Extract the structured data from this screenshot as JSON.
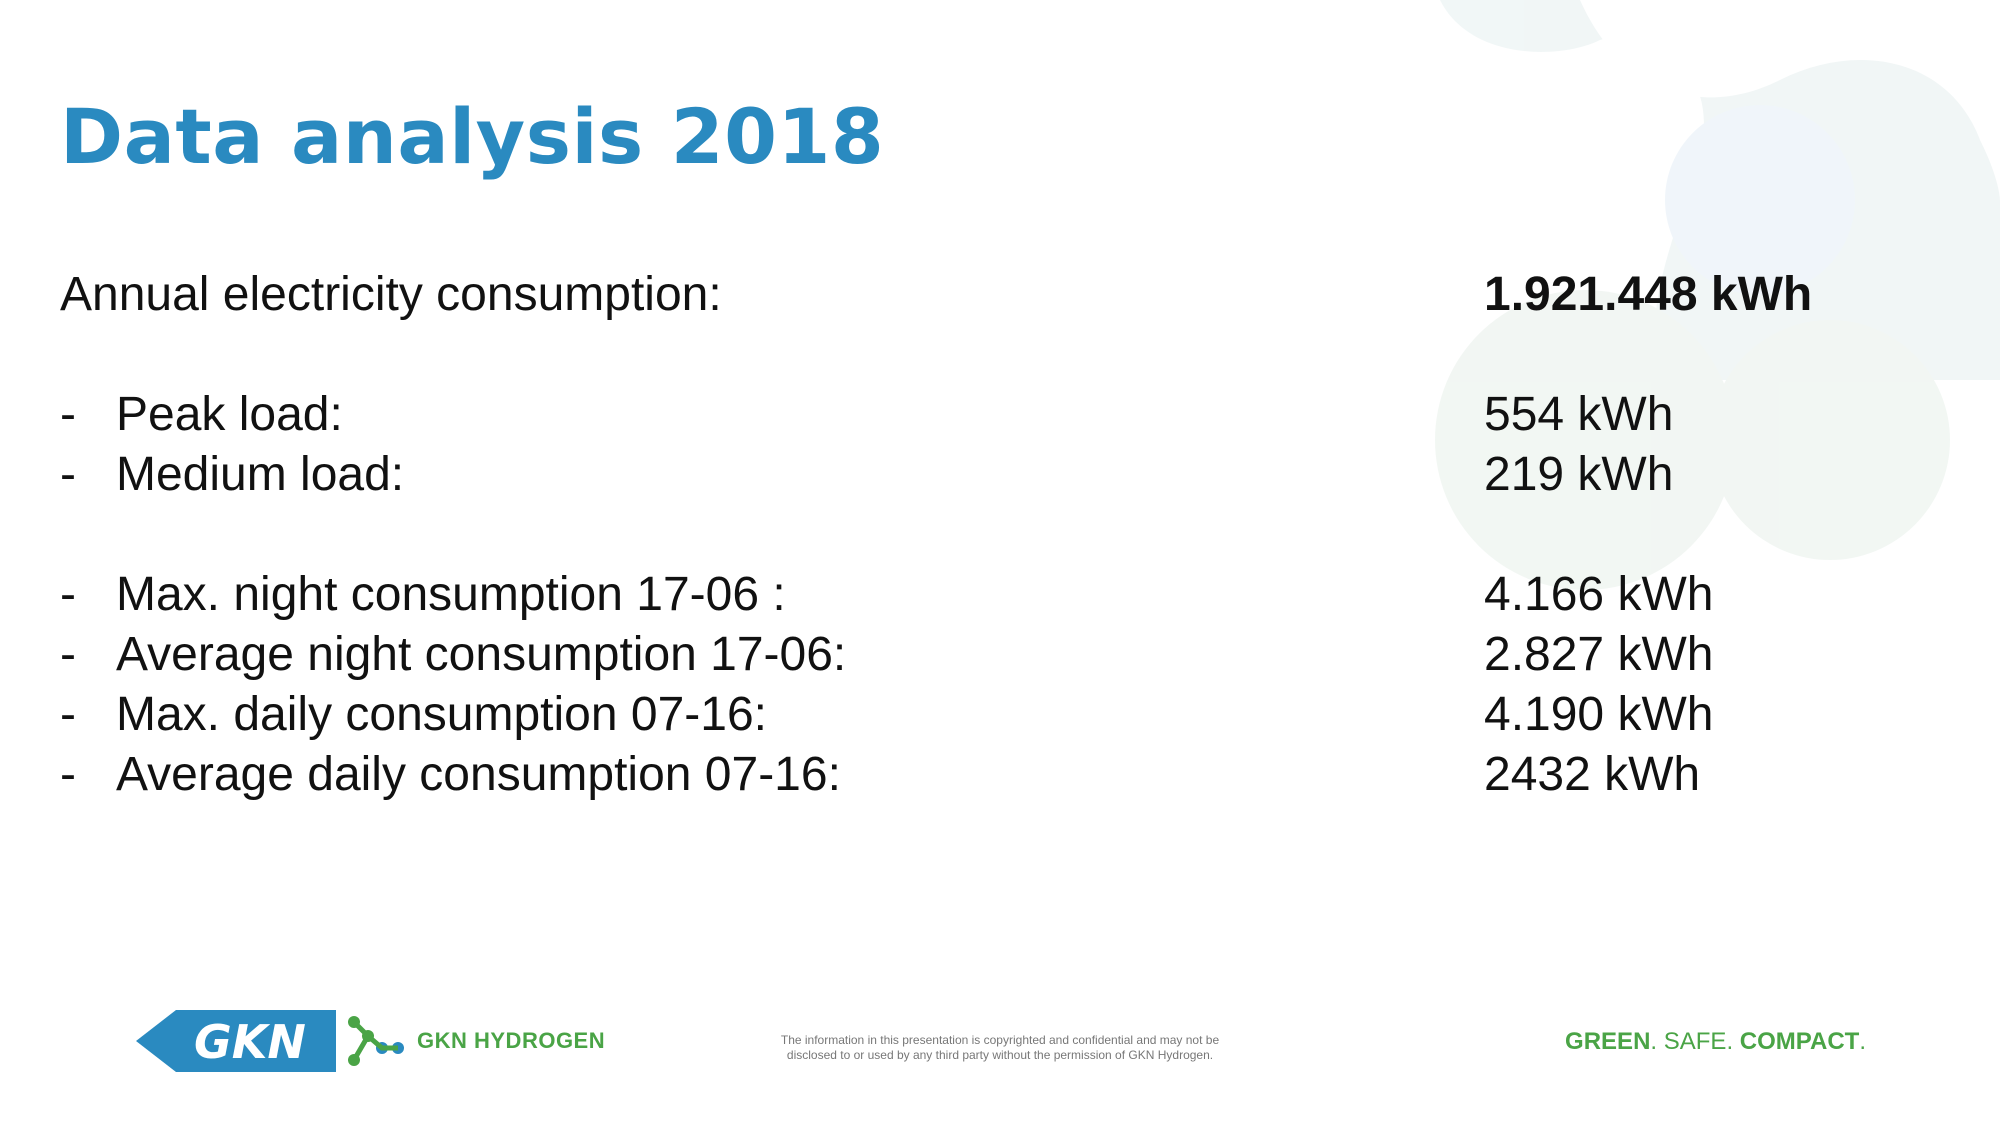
{
  "slide": {
    "title": "Data analysis 2018",
    "annual": {
      "label": "Annual electricity consumption:",
      "value": "1.921.448 kWh"
    },
    "items": [
      {
        "dash": "-",
        "label": "Peak load:",
        "value": "554 kWh"
      },
      {
        "dash": "-",
        "label": "Medium load:",
        "value": "219 kWh"
      },
      {
        "dash": "-",
        "label": "Max. night consumption 17-06 :",
        "value": "4.166 kWh"
      },
      {
        "dash": "-",
        "label": "Average night consumption 17-06:",
        "value": "2.827 kWh"
      },
      {
        "dash": "-",
        "label": "Max. daily consumption 07-16:",
        "value": "4.190 kWh"
      },
      {
        "dash": "-",
        "label": "Average daily consumption 07-16:",
        "value": "2432 kWh"
      }
    ]
  },
  "footer": {
    "brand": "GKN HYDROGEN",
    "disclaimer_line1": "The information in this presentation is copyrighted and confidential and may not be",
    "disclaimer_line2": "disclosed to or used by any third party without the permission of GKN Hydrogen.",
    "tagline": {
      "part1": "GREEN",
      "part2": "SAFE",
      "part3": "COMPACT",
      "sep": "."
    },
    "logo_text": "GKN"
  },
  "colors": {
    "title": "#2a8ac0",
    "brand_green": "#4aa446",
    "logo_blue": "#2a8ac0"
  }
}
